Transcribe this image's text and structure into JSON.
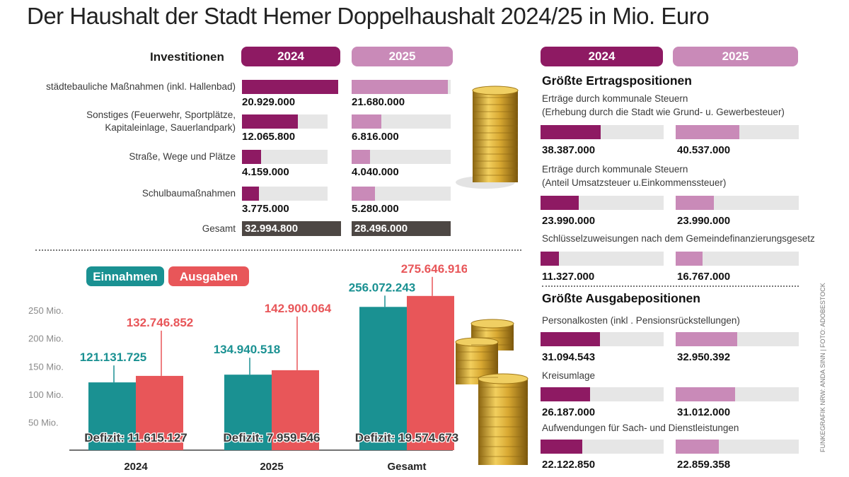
{
  "title": "Der Haushalt der Stadt Hemer Doppelhaushalt 2024/25 in Mio. Euro",
  "colors": {
    "y2024": "#8e1a63",
    "y2025": "#c98ab8",
    "teal": "#1a9192",
    "red": "#e85659",
    "track": "#e6e6e6",
    "total": "#4d4744"
  },
  "investitionen": {
    "heading": "Investitionen",
    "year_a": "2024",
    "year_b": "2025",
    "rows": [
      {
        "label": "städtebauliche Maßnahmen (inkl. Hallenbad)",
        "a_text": "20.929.000",
        "b_text": "21.680.000",
        "a_frac": 1.0,
        "b_frac": 1.0
      },
      {
        "label": "Sonstiges (Feuerwehr, Sportplätze,\nKapitaleinlage, Sauerlandpark)",
        "a_text": "12.065.800",
        "b_text": "6.816.000",
        "a_frac": 0.58,
        "b_frac": 0.31
      },
      {
        "label": "Straße, Wege und Plätze",
        "a_text": "4.159.000",
        "b_text": "4.040.000",
        "a_frac": 0.2,
        "b_frac": 0.19
      },
      {
        "label": "Schulbaumaßnahmen",
        "a_text": "3.775.000",
        "b_text": "5.280.000",
        "a_frac": 0.18,
        "b_frac": 0.24
      }
    ],
    "total_label": "Gesamt",
    "total_a": "32.994.800",
    "total_b": "28.496.000"
  },
  "right": {
    "year_a": "2024",
    "year_b": "2025",
    "ertrag_heading": "Größte Ertragspositionen",
    "ertrag": [
      {
        "label": "Erträge durch kommunale Steuern\n(Erhebung durch die Stadt wie Grund- u. Gewerbesteuer)",
        "a_text": "38.387.000",
        "b_text": "40.537.000",
        "a_frac": 0.49,
        "b_frac": 0.52
      },
      {
        "label": "Erträge durch kommunale Steuern\n(Anteil Umsatzsteuer u.Einkommenssteuer)",
        "a_text": "23.990.000",
        "b_text": "23.990.000",
        "a_frac": 0.31,
        "b_frac": 0.31
      },
      {
        "label": "Schlüsselzuweisungen nach dem Gemeindefinanzierungsgesetz",
        "a_text": "11.327.000",
        "b_text": "16.767.000",
        "a_frac": 0.15,
        "b_frac": 0.22
      }
    ],
    "ausgabe_heading": "Größte Ausgabepositionen",
    "ausgabe": [
      {
        "label": "Personalkosten (inkl . Pensionsrückstellungen)",
        "a_text": "31.094.543",
        "b_text": "32.950.392",
        "a_frac": 0.48,
        "b_frac": 0.5
      },
      {
        "label": "Kreisumlage",
        "a_text": "26.187.000",
        "b_text": "31.012.000",
        "a_frac": 0.4,
        "b_frac": 0.48
      },
      {
        "label": "Aufwendungen für Sach- und Dienstleistungen",
        "a_text": "22.122.850",
        "b_text": "22.859.358",
        "a_frac": 0.34,
        "b_frac": 0.35
      }
    ]
  },
  "legend": {
    "einnahmen": "Einnahmen",
    "ausgaben": "Ausgaben"
  },
  "chart_data": {
    "type": "bar",
    "categories": [
      "2024",
      "2025",
      "Gesamt"
    ],
    "series": [
      {
        "name": "Einnahmen",
        "values": [
          121.131725,
          134.940518,
          256.072243
        ],
        "labels": [
          "121.131.725",
          "134.940.518",
          "256.072.243"
        ]
      },
      {
        "name": "Ausgaben",
        "values": [
          132.746852,
          142.900064,
          275.646916
        ],
        "labels": [
          "132.746.852",
          "142.900.064",
          "275.646.916"
        ]
      }
    ],
    "deficits": [
      "Defizit: 11.615.127",
      "Defizit: 7.959.546",
      "Defizit: 19.574.673"
    ],
    "yticks": [
      {
        "value": 50,
        "label": "50 Mio."
      },
      {
        "value": 100,
        "label": "100 Mio."
      },
      {
        "value": 150,
        "label": "150 Mio."
      },
      {
        "value": 200,
        "label": "200 Mio."
      },
      {
        "value": 250,
        "label": "250 Mio."
      }
    ],
    "ylim": [
      0,
      275.646916
    ],
    "grid": false,
    "legend": "top-left"
  },
  "credit": "FUNKEGRAFIK NRW: ANDA SINN | FOTO: ADOBESTOCK"
}
